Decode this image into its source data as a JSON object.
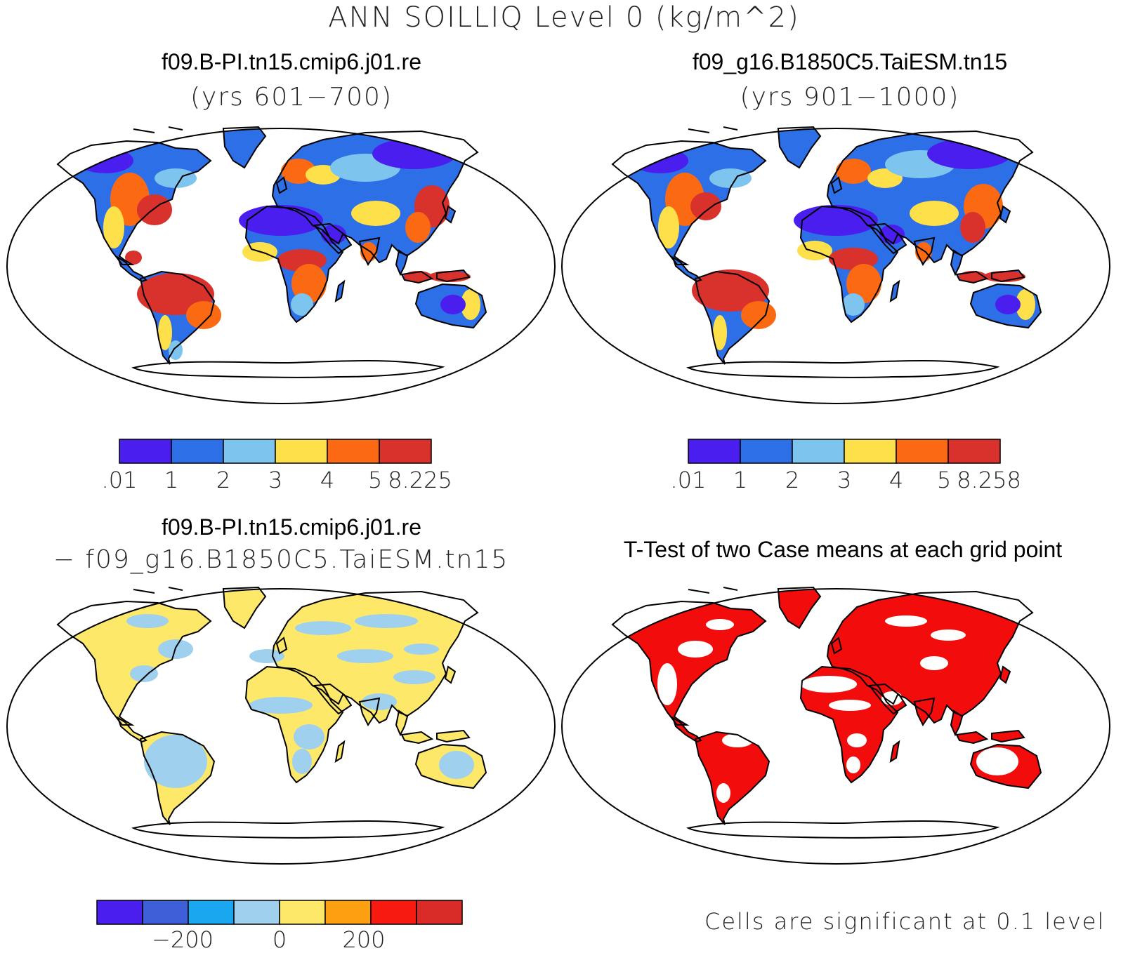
{
  "title": "ANN SOILLIQ Level 0 (kg/m^2)",
  "panels": [
    {
      "title": "f09.B-PI.tn15.cmip6.j01.re",
      "subtitle": "(yrs 601−700)",
      "colorbar": {
        "colors": [
          "#4b1ef0",
          "#2d6fe6",
          "#7dc4ee",
          "#fde04a",
          "#fb6a12",
          "#d9312c"
        ],
        "labels": [
          ".01",
          "1",
          "2",
          "3",
          "4",
          "5",
          "8.225"
        ]
      }
    },
    {
      "title": "f09_g16.B1850C5.TaiESM.tn15",
      "subtitle": "(yrs 901−1000)",
      "colorbar": {
        "colors": [
          "#4b1ef0",
          "#2d6fe6",
          "#7dc4ee",
          "#fde04a",
          "#fb6a12",
          "#d9312c"
        ],
        "labels": [
          ".01",
          "1",
          "2",
          "3",
          "4",
          "5",
          "8.258"
        ]
      }
    },
    {
      "title": "f09.B-PI.tn15.cmip6.j01.re",
      "subtitle": "− f09_g16.B1850C5.TaiESM.tn15",
      "colorbar": {
        "colors": [
          "#4b1ef0",
          "#3f5fd8",
          "#1aa7ef",
          "#9fd0ee",
          "#fde86a",
          "#fca012",
          "#f71a10",
          "#d92c28"
        ],
        "labels": [
          "−200",
          "0",
          "200"
        ]
      }
    },
    {
      "title": "T-Test of two Case means at each grid point",
      "note": "Cells are significant at 0.1 level",
      "color": "#f20c0c"
    }
  ]
}
